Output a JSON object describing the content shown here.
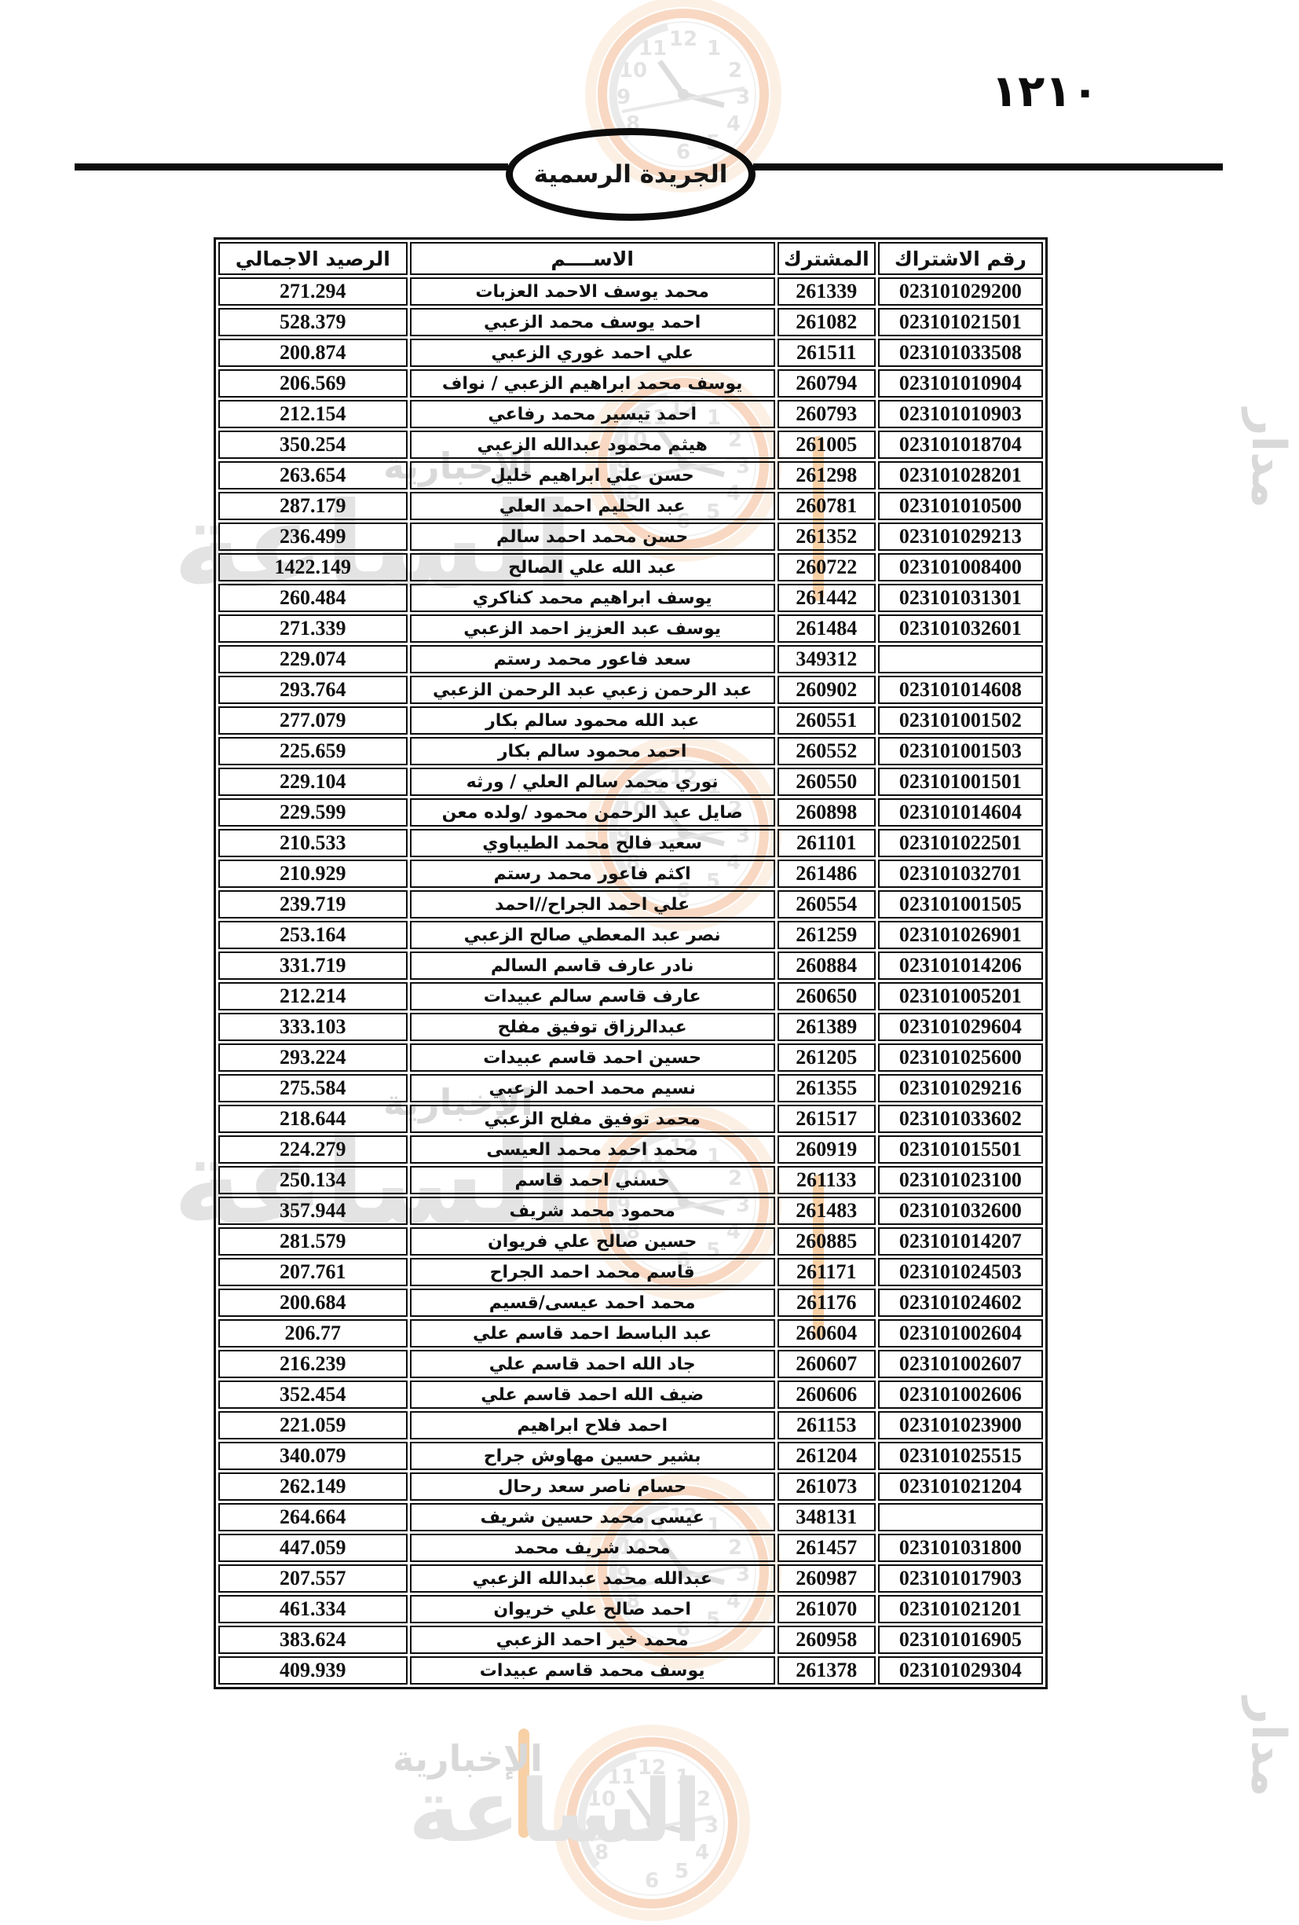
{
  "page": {
    "number_arabic": "١٢١٠",
    "gazette_title": "الجريدة الرسمية"
  },
  "watermark": {
    "word_news": "الإخبارية",
    "word_clock": "الساعة",
    "word_madar": "مدار"
  },
  "table": {
    "headers": {
      "subscription_no": "رقم الاشتراك",
      "subscriber": "المشترك",
      "name": "الاســــم",
      "balance": "الرصيد الاجمالي"
    },
    "rows": [
      {
        "subscription_no": "023101029200",
        "subscriber": "261339",
        "name": "محمد يوسف الاحمد العزبات",
        "balance": "271.294"
      },
      {
        "subscription_no": "023101021501",
        "subscriber": "261082",
        "name": "احمد يوسف محمد الزعبي",
        "balance": "528.379"
      },
      {
        "subscription_no": "023101033508",
        "subscriber": "261511",
        "name": "علي احمد غوري الزعبي",
        "balance": "200.874"
      },
      {
        "subscription_no": "023101010904",
        "subscriber": "260794",
        "name": "يوسف محمد ابراهيم الزعبي / نواف",
        "balance": "206.569"
      },
      {
        "subscription_no": "023101010903",
        "subscriber": "260793",
        "name": "احمد تيسير محمد رفاعي",
        "balance": "212.154"
      },
      {
        "subscription_no": "023101018704",
        "subscriber": "261005",
        "name": "هيثم محمود عبدالله الزعبي",
        "balance": "350.254"
      },
      {
        "subscription_no": "023101028201",
        "subscriber": "261298",
        "name": "حسن علي ابراهيم خليل",
        "balance": "263.654"
      },
      {
        "subscription_no": "023101010500",
        "subscriber": "260781",
        "name": "عبد الحليم احمد العلي",
        "balance": "287.179"
      },
      {
        "subscription_no": "023101029213",
        "subscriber": "261352",
        "name": "حسن محمد احمد سالم",
        "balance": "236.499"
      },
      {
        "subscription_no": "023101008400",
        "subscriber": "260722",
        "name": "عبد الله علي الصالح",
        "balance": "1422.149"
      },
      {
        "subscription_no": "023101031301",
        "subscriber": "261442",
        "name": "يوسف ابراهيم محمد كناكري",
        "balance": "260.484"
      },
      {
        "subscription_no": "023101032601",
        "subscriber": "261484",
        "name": "يوسف عبد العزيز احمد الزعبي",
        "balance": "271.339"
      },
      {
        "subscription_no": "",
        "subscriber": "349312",
        "name": "سعد فاعور محمد رستم",
        "balance": "229.074"
      },
      {
        "subscription_no": "023101014608",
        "subscriber": "260902",
        "name": "عبد الرحمن زعبي عبد الرحمن الزعبي",
        "balance": "293.764"
      },
      {
        "subscription_no": "023101001502",
        "subscriber": "260551",
        "name": "عبد الله محمود سالم بكار",
        "balance": "277.079"
      },
      {
        "subscription_no": "023101001503",
        "subscriber": "260552",
        "name": "احمد محمود سالم بكار",
        "balance": "225.659"
      },
      {
        "subscription_no": "023101001501",
        "subscriber": "260550",
        "name": "نوري محمد سالم العلي / ورثه",
        "balance": "229.104"
      },
      {
        "subscription_no": "023101014604",
        "subscriber": "260898",
        "name": "صايل عبد الرحمن محمود /ولده معن",
        "balance": "229.599"
      },
      {
        "subscription_no": "023101022501",
        "subscriber": "261101",
        "name": "سعيد فالح محمد الطيباوي",
        "balance": "210.533"
      },
      {
        "subscription_no": "023101032701",
        "subscriber": "261486",
        "name": "اكثم فاعور محمد رستم",
        "balance": "210.929"
      },
      {
        "subscription_no": "023101001505",
        "subscriber": "260554",
        "name": "علي احمد الجراح//احمد",
        "balance": "239.719"
      },
      {
        "subscription_no": "023101026901",
        "subscriber": "261259",
        "name": "نصر عبد المعطي صالح الزعبي",
        "balance": "253.164"
      },
      {
        "subscription_no": "023101014206",
        "subscriber": "260884",
        "name": "نادر عارف قاسم السالم",
        "balance": "331.719"
      },
      {
        "subscription_no": "023101005201",
        "subscriber": "260650",
        "name": "عارف قاسم سالم عبيدات",
        "balance": "212.214"
      },
      {
        "subscription_no": "023101029604",
        "subscriber": "261389",
        "name": "عبدالرزاق توفيق مفلح",
        "balance": "333.103"
      },
      {
        "subscription_no": "023101025600",
        "subscriber": "261205",
        "name": "حسين احمد قاسم عبيدات",
        "balance": "293.224"
      },
      {
        "subscription_no": "023101029216",
        "subscriber": "261355",
        "name": "نسيم محمد احمد الزعبي",
        "balance": "275.584"
      },
      {
        "subscription_no": "023101033602",
        "subscriber": "261517",
        "name": "محمد توفيق مفلح الزعبي",
        "balance": "218.644"
      },
      {
        "subscription_no": "023101015501",
        "subscriber": "260919",
        "name": "محمد احمد محمد العيسى",
        "balance": "224.279"
      },
      {
        "subscription_no": "023101023100",
        "subscriber": "261133",
        "name": "حسني احمد قاسم",
        "balance": "250.134"
      },
      {
        "subscription_no": "023101032600",
        "subscriber": "261483",
        "name": "محمود محمد شريف",
        "balance": "357.944"
      },
      {
        "subscription_no": "023101014207",
        "subscriber": "260885",
        "name": "حسين صالح علي فريوان",
        "balance": "281.579"
      },
      {
        "subscription_no": "023101024503",
        "subscriber": "261171",
        "name": "قاسم محمد احمد الجراح",
        "balance": "207.761"
      },
      {
        "subscription_no": "023101024602",
        "subscriber": "261176",
        "name": "محمد احمد عيسى/قسيم",
        "balance": "200.684"
      },
      {
        "subscription_no": "023101002604",
        "subscriber": "260604",
        "name": "عبد الباسط احمد قاسم علي",
        "balance": "206.77"
      },
      {
        "subscription_no": "023101002607",
        "subscriber": "260607",
        "name": "جاد الله احمد قاسم علي",
        "balance": "216.239"
      },
      {
        "subscription_no": "023101002606",
        "subscriber": "260606",
        "name": "ضيف الله احمد قاسم علي",
        "balance": "352.454"
      },
      {
        "subscription_no": "023101023900",
        "subscriber": "261153",
        "name": "احمد فلاح ابراهيم",
        "balance": "221.059"
      },
      {
        "subscription_no": "023101025515",
        "subscriber": "261204",
        "name": "بشير حسين مهاوش جراح",
        "balance": "340.079"
      },
      {
        "subscription_no": "023101021204",
        "subscriber": "261073",
        "name": "حسام ناصر سعد رحال",
        "balance": "262.149"
      },
      {
        "subscription_no": "",
        "subscriber": "348131",
        "name": "عيسى محمد حسين شريف",
        "balance": "264.664"
      },
      {
        "subscription_no": "023101031800",
        "subscriber": "261457",
        "name": "محمد شريف محمد",
        "balance": "447.059"
      },
      {
        "subscription_no": "023101017903",
        "subscriber": "260987",
        "name": "عبدالله محمد عبدالله الزعبي",
        "balance": "207.557"
      },
      {
        "subscription_no": "023101021201",
        "subscriber": "261070",
        "name": "احمد صالح علي خريوان",
        "balance": "461.334"
      },
      {
        "subscription_no": "023101016905",
        "subscriber": "260958",
        "name": "محمد خير احمد الزعبي",
        "balance": "383.624"
      },
      {
        "subscription_no": "023101029304",
        "subscriber": "261378",
        "name": "يوسف محمد قاسم عبيدات",
        "balance": "409.939"
      }
    ]
  }
}
